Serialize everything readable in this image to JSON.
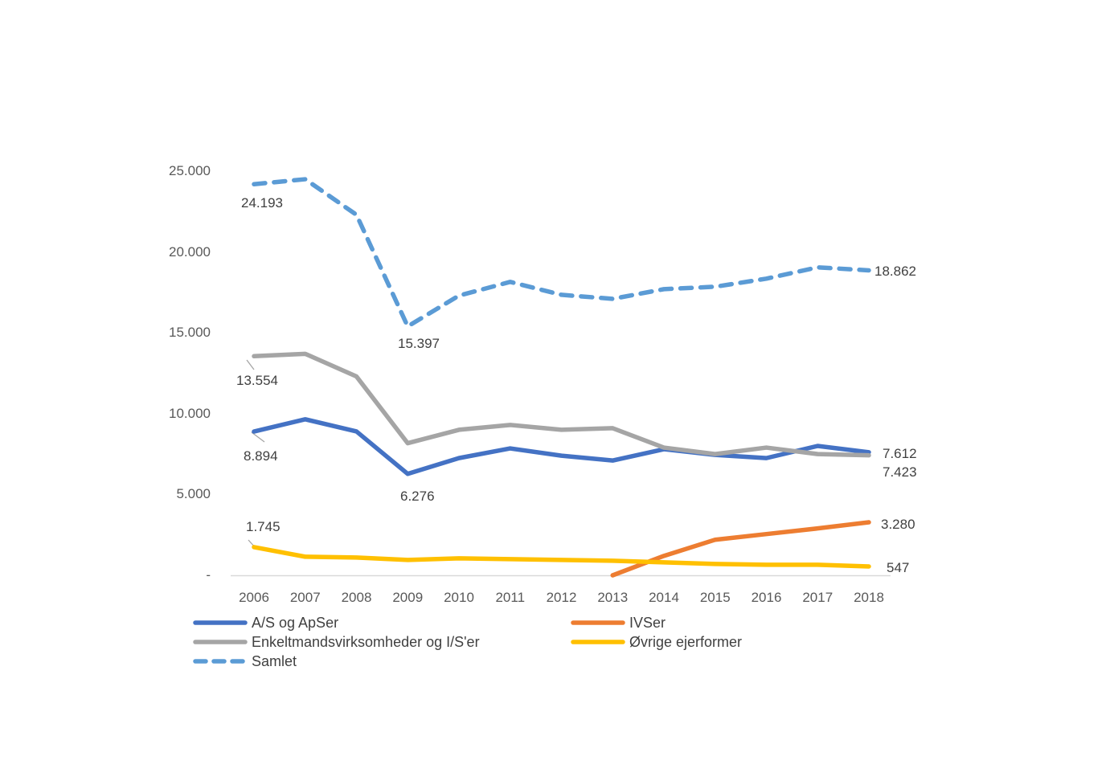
{
  "chart_data": {
    "type": "line",
    "title": "",
    "xlabel": "",
    "ylabel": "",
    "grid": false,
    "legend_position": "bottom-left",
    "ylim": [
      0,
      25000
    ],
    "x": [
      2006,
      2007,
      2008,
      2009,
      2010,
      2011,
      2012,
      2013,
      2014,
      2015,
      2016,
      2017,
      2018
    ],
    "yticks": [
      {
        "value": 25000,
        "label": "25.000"
      },
      {
        "value": 20000,
        "label": "20.000"
      },
      {
        "value": 15000,
        "label": "15.000"
      },
      {
        "value": 10000,
        "label": "10.000"
      },
      {
        "value": 5000,
        "label": "5.000"
      },
      {
        "value": 0,
        "label": "-"
      }
    ],
    "series": [
      {
        "id": "as_apser",
        "name": "A/S og ApSer",
        "color": "#4472C4",
        "dash": false,
        "values": [
          8894,
          9650,
          8900,
          6276,
          7250,
          7850,
          7400,
          7100,
          7800,
          7450,
          7250,
          8000,
          7612
        ]
      },
      {
        "id": "ivser",
        "name": "IVSer",
        "color": "#ED7D31",
        "dash": false,
        "values": [
          null,
          null,
          null,
          null,
          null,
          null,
          null,
          0,
          1200,
          2200,
          2550,
          2900,
          3280
        ]
      },
      {
        "id": "enkelt",
        "name": "Enkeltmandsvirksomheder og I/S'er",
        "color": "#A5A5A5",
        "dash": false,
        "values": [
          13554,
          13700,
          12300,
          8171,
          9000,
          9300,
          9000,
          9100,
          7900,
          7500,
          7900,
          7500,
          7423
        ]
      },
      {
        "id": "ovrige",
        "name": "Øvrige ejerformer",
        "color": "#FFC000",
        "dash": false,
        "values": [
          1745,
          1150,
          1100,
          950,
          1050,
          1000,
          950,
          900,
          800,
          700,
          650,
          650,
          547
        ]
      },
      {
        "id": "samlet",
        "name": "Samlet",
        "color": "#5B9BD5",
        "dash": true,
        "values": [
          24193,
          24500,
          22300,
          15397,
          17300,
          18150,
          17350,
          17100,
          17700,
          17850,
          18350,
          19050,
          18862
        ]
      }
    ],
    "annotations": [
      {
        "series": "samlet",
        "year": 2006,
        "text": "24.193"
      },
      {
        "series": "samlet",
        "year": 2009,
        "text": "15.397"
      },
      {
        "series": "enkelt",
        "year": 2006,
        "text": "13.554"
      },
      {
        "series": "as_apser",
        "year": 2006,
        "text": "8.894"
      },
      {
        "series": "as_apser",
        "year": 2009,
        "text": "6.276"
      },
      {
        "series": "ovrige",
        "year": 2006,
        "text": "1.745"
      },
      {
        "series": "samlet",
        "year": 2018,
        "text": "18.862"
      },
      {
        "series": "as_apser",
        "year": 2018,
        "text": "7.612"
      },
      {
        "series": "enkelt",
        "year": 2018,
        "text": "7.423"
      },
      {
        "series": "ivser",
        "year": 2018,
        "text": "3.280"
      },
      {
        "series": "ovrige",
        "year": 2018,
        "text": "547"
      }
    ]
  },
  "legend": {
    "items": [
      {
        "label": "A/S og ApSer",
        "series": "as_apser"
      },
      {
        "label": "IVSer",
        "series": "ivser"
      },
      {
        "label": "Enkeltmandsvirksomheder og I/S'er",
        "series": "enkelt"
      },
      {
        "label": "Øvrige ejerformer",
        "series": "ovrige"
      },
      {
        "label": "Samlet",
        "series": "samlet"
      }
    ]
  },
  "colors": {
    "axis_line": "#D9D9D9",
    "tick_text": "#595959",
    "annotation_text": "#404040",
    "leader_line": "#A6A6A6"
  }
}
